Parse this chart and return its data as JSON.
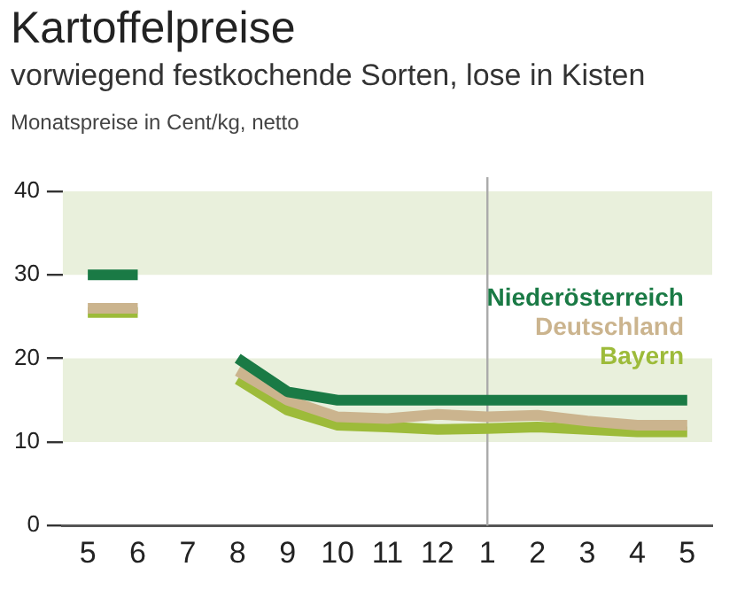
{
  "chart_data": {
    "type": "line",
    "title": "Kartoffelpreise",
    "subtitle": "vorwiegend festkochende Sorten, lose in Kisten",
    "ylabel": "Monatspreise in Cent/kg, netto",
    "categories": [
      "5",
      "6",
      "7",
      "8",
      "9",
      "10",
      "11",
      "12",
      "1",
      "2",
      "3",
      "4",
      "5"
    ],
    "series": [
      {
        "name": "Niederösterreich",
        "color": "#1a7a45",
        "values": [
          30,
          30,
          null,
          20,
          16,
          15,
          15,
          15,
          15,
          15,
          15,
          15,
          15
        ]
      },
      {
        "name": "Deutschland",
        "color": "#cbb48e",
        "values": [
          26,
          26,
          null,
          18.5,
          15,
          13,
          12.8,
          13.3,
          13,
          13.2,
          12.5,
          12,
          12
        ]
      },
      {
        "name": "Bayern",
        "color": "#9dbb3a",
        "values": [
          25.5,
          25.5,
          null,
          17.5,
          13.8,
          12,
          11.8,
          11.5,
          11.6,
          11.8,
          11.5,
          11.2,
          11.2
        ]
      }
    ],
    "ylim": [
      0,
      40
    ],
    "yticks": [
      0,
      10,
      20,
      30,
      40
    ],
    "grid": false,
    "legend": false,
    "line_style": "solid",
    "marker": "none",
    "bands": [
      {
        "axis": "y",
        "from": 10,
        "to": 20,
        "color": "#e9f0dc"
      },
      {
        "axis": "y",
        "from": 30,
        "to": 40,
        "color": "#e9f0dc"
      }
    ],
    "ref_lines": [
      {
        "axis": "x",
        "value": "1",
        "color": "#aaaaaa"
      }
    ]
  }
}
